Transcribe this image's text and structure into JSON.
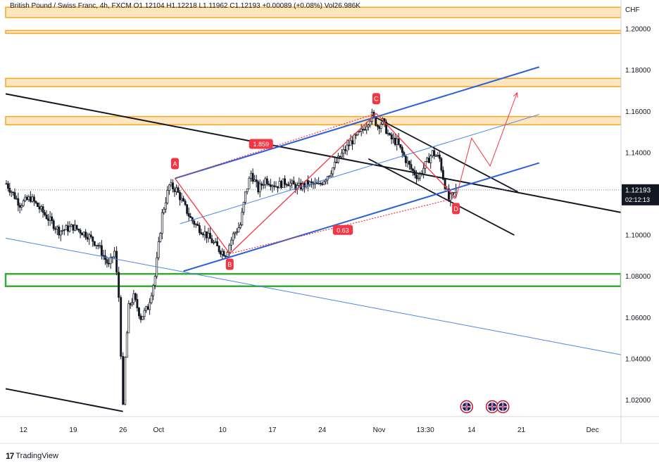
{
  "header": {
    "title": "British Pound / Swiss Franc, 4h, FXCM",
    "ohlc": "O1.12104 H1.12218 L1.11962 C1.12193 +0.00089 (+0.08%)",
    "volume": "Vol26.986K"
  },
  "footer": {
    "logo_text": "TradingView",
    "logo_mark": "17"
  },
  "chart_data": {
    "type": "candlestick",
    "currency": "CHF",
    "ylim": [
      1.012,
      1.214
    ],
    "y_ticks": [
      1.2,
      1.18,
      1.16,
      1.14,
      1.12,
      1.1,
      1.08,
      1.06,
      1.04,
      1.02
    ],
    "x_ticks": [
      {
        "label": "12",
        "day": 12
      },
      {
        "label": "19",
        "day": 19
      },
      {
        "label": "26",
        "day": 26
      },
      {
        "label": "Oct",
        "day": 31
      },
      {
        "label": "10",
        "day": 40
      },
      {
        "label": "17",
        "day": 47
      },
      {
        "label": "24",
        "day": 54
      },
      {
        "label": "Nov",
        "day": 62
      },
      {
        "label": "13:30",
        "day": 68.5
      },
      {
        "label": "14",
        "day": 75
      },
      {
        "label": "21",
        "day": 82
      },
      {
        "label": "Dec",
        "day": 92
      }
    ],
    "x_range": [
      9.5,
      96
    ],
    "last_price": {
      "value": 1.12193,
      "label": "1.12193",
      "countdown": "02:12:13"
    },
    "price_path": [
      [
        9.6,
        1.125
      ],
      [
        11.5,
        1.115
      ],
      [
        13,
        1.118
      ],
      [
        15,
        1.11
      ],
      [
        17,
        1.102
      ],
      [
        19,
        1.104
      ],
      [
        21,
        1.1
      ],
      [
        22.5,
        1.095
      ],
      [
        24,
        1.085
      ],
      [
        24.8,
        1.092
      ],
      [
        25.4,
        1.07
      ],
      [
        26,
        1.016
      ],
      [
        26.3,
        1.04
      ],
      [
        26.8,
        1.065
      ],
      [
        27.5,
        1.07
      ],
      [
        28.5,
        1.06
      ],
      [
        29.5,
        1.065
      ],
      [
        30.5,
        1.08
      ],
      [
        31.5,
        1.11
      ],
      [
        32.5,
        1.124
      ],
      [
        33.5,
        1.122
      ],
      [
        34.5,
        1.115
      ],
      [
        35.5,
        1.108
      ],
      [
        36.5,
        1.104
      ],
      [
        37.5,
        1.101
      ],
      [
        38.5,
        1.097
      ],
      [
        39.5,
        1.093
      ],
      [
        40.4,
        1.091
      ],
      [
        41.5,
        1.1
      ],
      [
        42.5,
        1.105
      ],
      [
        43.2,
        1.12
      ],
      [
        44,
        1.13
      ],
      [
        45,
        1.122
      ],
      [
        46,
        1.127
      ],
      [
        47.5,
        1.124
      ],
      [
        49,
        1.126
      ],
      [
        50.5,
        1.123
      ],
      [
        52,
        1.125
      ],
      [
        53.5,
        1.124
      ],
      [
        55,
        1.13
      ],
      [
        56.5,
        1.138
      ],
      [
        58,
        1.145
      ],
      [
        59.5,
        1.15
      ],
      [
        61,
        1.158
      ],
      [
        61.8,
        1.153
      ],
      [
        62.5,
        1.155
      ],
      [
        63.5,
        1.147
      ],
      [
        64.5,
        1.145
      ],
      [
        65.5,
        1.138
      ],
      [
        66.5,
        1.132
      ],
      [
        67.5,
        1.128
      ],
      [
        68.5,
        1.134
      ],
      [
        69.5,
        1.14
      ],
      [
        70.5,
        1.137
      ],
      [
        71,
        1.128
      ],
      [
        71.8,
        1.117
      ],
      [
        72.5,
        1.12
      ],
      [
        72.8,
        1.122
      ]
    ],
    "zones": [
      {
        "from": 1.2105,
        "to": 1.2055,
        "color": "#f5a623",
        "fill": "#fde6bf"
      },
      {
        "from": 1.1992,
        "to": 1.1978,
        "color": "#f5a623",
        "fill": "#fde6bf"
      },
      {
        "from": 1.176,
        "to": 1.172,
        "color": "#f5a623",
        "fill": "#fde6bf"
      },
      {
        "from": 1.1575,
        "to": 1.1535,
        "color": "#f5a623",
        "fill": "#fde6bf"
      },
      {
        "from": 1.0812,
        "to": 1.0752,
        "color": "#3aa935",
        "fill": "none"
      }
    ],
    "lines": [
      {
        "name": "black-trendline-upper",
        "color": "#131722",
        "width": 2,
        "points": [
          [
            9.5,
            1.1685
          ],
          [
            96,
            1.111
          ]
        ]
      },
      {
        "name": "black-trendline-lower",
        "color": "#131722",
        "width": 2,
        "points": [
          [
            9.5,
            1.0255
          ],
          [
            26,
            1.0145
          ]
        ]
      },
      {
        "name": "black-falling-wedge-top",
        "color": "#131722",
        "width": 1.8,
        "points": [
          [
            61,
            1.158
          ],
          [
            81.5,
            1.121
          ]
        ]
      },
      {
        "name": "black-falling-wedge-bottom",
        "color": "#131722",
        "width": 1.8,
        "points": [
          [
            60.5,
            1.137
          ],
          [
            81,
            1.1
          ]
        ]
      },
      {
        "name": "blue-channel-top",
        "color": "#2b5fd9",
        "width": 2,
        "points": [
          [
            33.3,
            1.1275
          ],
          [
            84.5,
            1.1815
          ]
        ]
      },
      {
        "name": "blue-channel-bottom",
        "color": "#2b5fd9",
        "width": 2,
        "points": [
          [
            34.5,
            1.0825
          ],
          [
            84.5,
            1.135
          ]
        ]
      },
      {
        "name": "blue-channel-mid",
        "color": "#4a86e8",
        "width": 1,
        "points": [
          [
            34,
            1.1055
          ],
          [
            84.5,
            1.1585
          ]
        ]
      },
      {
        "name": "blue-long-descending",
        "color": "#4a86e8",
        "width": 1,
        "points": [
          [
            9.5,
            1.0985
          ],
          [
            96,
            1.042
          ]
        ]
      }
    ],
    "harmonic_pattern": {
      "points": [
        {
          "label": "A",
          "x": 33.3,
          "y": 1.1275,
          "label_pos": "above"
        },
        {
          "label": "B",
          "x": 41,
          "y": 1.091,
          "label_pos": "below"
        },
        {
          "label": "C",
          "x": 61.6,
          "y": 1.159,
          "label_pos": "above"
        },
        {
          "label": "D",
          "x": 72.8,
          "y": 1.118,
          "label_pos": "below"
        }
      ],
      "ratios": [
        {
          "label": "1.859",
          "x": 45.4,
          "y": 1.1442
        },
        {
          "label": "0.63",
          "x": 56.9,
          "y": 1.1025
        }
      ],
      "color": "#f23645"
    },
    "projection": {
      "color": "#f23645",
      "points": [
        [
          72.8,
          1.118
        ],
        [
          75,
          1.147
        ],
        [
          77.6,
          1.1335
        ],
        [
          81.4,
          1.169
        ]
      ]
    },
    "events": [
      {
        "x": 74.3,
        "label": "GB"
      },
      {
        "x": 77.9,
        "label": "GB"
      },
      {
        "x": 79.4,
        "label": "GB"
      }
    ]
  }
}
